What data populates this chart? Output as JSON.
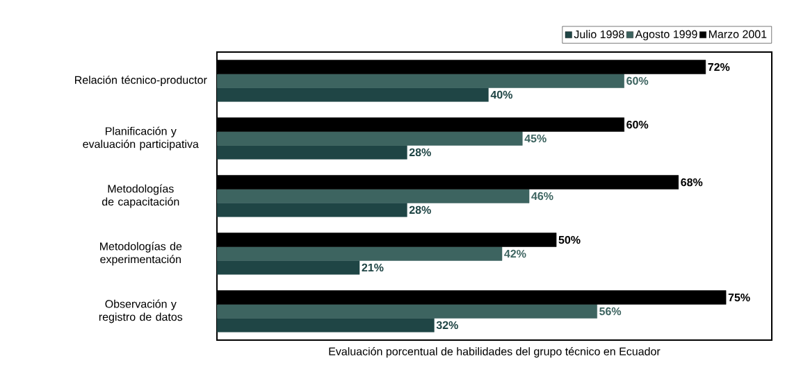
{
  "chart_data": {
    "type": "bar",
    "orientation": "horizontal",
    "xlabel": "Evaluación porcentual de habilidades del grupo técnico en Ecuador",
    "categories": [
      "Relación técnico-productor",
      "Planificación y evaluación participativa",
      "Metodologías de capacitación",
      "Metodologías de experimentación",
      "Observación y registro de datos"
    ],
    "series": [
      {
        "name": "Julio 1998",
        "color": "#1f4545",
        "values": [
          40,
          28,
          28,
          21,
          32
        ],
        "value_labels": [
          "40%",
          "28%",
          "28%",
          "21%",
          "32%"
        ]
      },
      {
        "name": "Agosto 1999",
        "color": "#3d6460",
        "values": [
          60,
          45,
          46,
          42,
          56
        ],
        "value_labels": [
          "60%",
          "45%",
          "46%",
          "42%",
          "56%"
        ]
      },
      {
        "name": "Marzo 2001",
        "color": "#000000",
        "values": [
          72,
          60,
          68,
          50,
          75
        ],
        "value_labels": [
          "72%",
          "60%",
          "68%",
          "50%",
          "75%"
        ]
      }
    ],
    "legend": "top right"
  }
}
